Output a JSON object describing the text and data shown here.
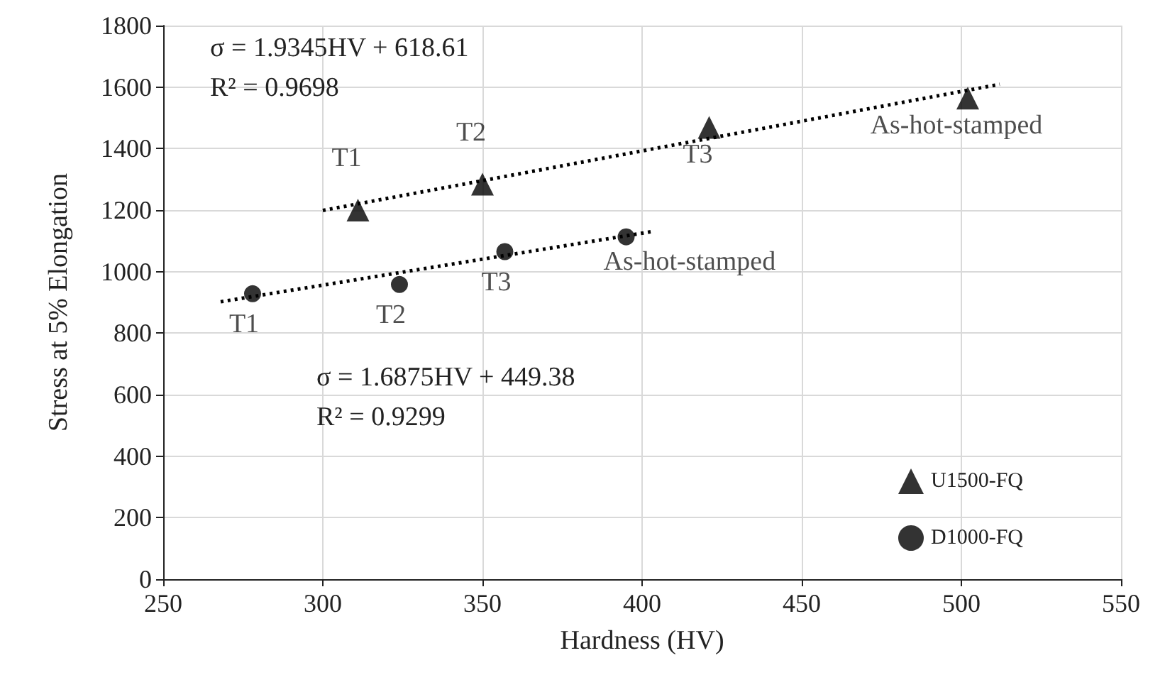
{
  "chart_data": {
    "type": "scatter",
    "xlabel": "Hardness (HV)",
    "ylabel": "Stress at 5% Elongation",
    "xlim": [
      250,
      550
    ],
    "xticks": [
      250,
      300,
      350,
      400,
      450,
      500,
      550
    ],
    "ylim": [
      0,
      1800
    ],
    "yticks": [
      0,
      200,
      400,
      600,
      800,
      1000,
      1200,
      1400,
      1600,
      1800
    ],
    "grid": true,
    "legend": "bottom right",
    "series": [
      {
        "name": "U1500-FQ",
        "color": "#000000",
        "marker": "triangle",
        "x": [
          311,
          350,
          421,
          502
        ],
        "values": [
          1200,
          1284,
          1469,
          1564
        ],
        "value_labels": [
          "T1",
          "T2",
          "T3",
          "As-hot-stamped"
        ]
      },
      {
        "name": "D1000-FQ",
        "color": "#000000",
        "marker": "circle",
        "x": [
          278,
          324,
          357,
          395
        ],
        "values": [
          928,
          958,
          1065,
          1113
        ],
        "value_labels": [
          "T1",
          "T2",
          "T3",
          "As-hot-stamped"
        ]
      },
      {
        "type": "line",
        "color": "#000000",
        "line_style": "dotted",
        "marker": "none",
        "x": [
          300,
          512
        ],
        "values": [
          1199,
          1609
        ]
      },
      {
        "type": "line",
        "color": "#000000",
        "line_style": "dotted",
        "marker": "none",
        "x": [
          268,
          403
        ],
        "values": [
          902,
          1130
        ]
      }
    ],
    "annotations": [
      "σ = 1.9345HV + 618.61\nR² = 0.9698",
      "σ = 1.6875HV + 449.38\nR² = 0.9299"
    ]
  }
}
